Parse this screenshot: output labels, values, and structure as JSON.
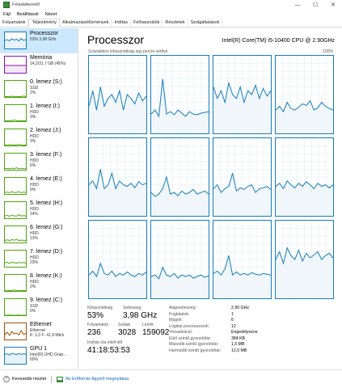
{
  "window": {
    "title": "Feladatkezelő",
    "minimize": "—",
    "maximize": "☐",
    "close": "✕"
  },
  "menu": [
    "Fájl",
    "Beállítások",
    "Nézet"
  ],
  "tabs": [
    "Folyamatok",
    "Teljesítmény",
    "Alkalmazáselőzmények",
    "Indítás",
    "Felhasználók",
    "Részletek",
    "Szolgáltatások"
  ],
  "active_tab": 1,
  "sidebar": {
    "items": [
      {
        "name": "Processzor",
        "sub1": "53%  3,98 GHz",
        "sub2": "",
        "color": "#117dbb",
        "fill": "#e8f2fa",
        "series": [
          50,
          55,
          48,
          60,
          52,
          58,
          47,
          62,
          50,
          56
        ]
      },
      {
        "name": "Memória",
        "sub1": "14,2/31,7 GB (45%)",
        "sub2": "",
        "color": "#8b12ae",
        "fill": "#f3e8f7",
        "series": [
          45,
          45,
          45,
          45,
          45,
          45,
          45,
          45,
          45,
          45
        ]
      },
      {
        "name": "0. lemez (S:)",
        "sub1": "SSD",
        "sub2": "2%",
        "color": "#4da60c",
        "fill": "#ffffff",
        "series": [
          2,
          3,
          2,
          5,
          2,
          2,
          3,
          2,
          6,
          2
        ]
      },
      {
        "name": "1. lemez (I:)",
        "sub1": "HDD",
        "sub2": "3%",
        "color": "#4da60c",
        "fill": "#ffffff",
        "series": [
          3,
          4,
          3,
          3,
          8,
          3,
          3,
          4,
          3,
          3
        ]
      },
      {
        "name": "2. lemez (J:)",
        "sub1": "HDD",
        "sub2": "3%",
        "color": "#4da60c",
        "fill": "#ffffff",
        "series": [
          3,
          3,
          5,
          3,
          3,
          3,
          7,
          3,
          3,
          3
        ]
      },
      {
        "name": "3. lemez (F:)",
        "sub1": "HDD",
        "sub2": "6%",
        "color": "#4da60c",
        "fill": "#ffffff",
        "series": [
          6,
          8,
          5,
          10,
          6,
          12,
          5,
          9,
          7,
          6
        ]
      },
      {
        "name": "4. lemez (E:)",
        "sub1": "HDD",
        "sub2": "9%",
        "color": "#4da60c",
        "fill": "#ffffff",
        "series": [
          9,
          12,
          8,
          15,
          9,
          10,
          14,
          8,
          11,
          9
        ]
      },
      {
        "name": "5. lemez (H:)",
        "sub1": "HDD",
        "sub2": "14%",
        "color": "#4da60c",
        "fill": "#ffffff",
        "series": [
          14,
          18,
          12,
          20,
          15,
          13,
          22,
          14,
          16,
          14
        ]
      },
      {
        "name": "6. lemez (G:)",
        "sub1": "HDD",
        "sub2": "13%",
        "color": "#4da60c",
        "fill": "#ffffff",
        "series": [
          13,
          16,
          12,
          18,
          14,
          20,
          12,
          15,
          13,
          13
        ]
      },
      {
        "name": "7. lemez (D:)",
        "sub1": "HDD",
        "sub2": "23%",
        "color": "#4da60c",
        "fill": "#ffffff",
        "series": [
          23,
          28,
          20,
          30,
          25,
          22,
          27,
          24,
          26,
          23
        ]
      },
      {
        "name": "8. lemez (K:)",
        "sub1": "HDD",
        "sub2": "2%",
        "color": "#4da60c",
        "fill": "#ffffff",
        "series": [
          2,
          2,
          3,
          2,
          6,
          2,
          2,
          2,
          3,
          2
        ]
      },
      {
        "name": "9. lemez (C:)",
        "sub1": "SSD",
        "sub2": "0%",
        "color": "#4da60c",
        "fill": "#ffffff",
        "series": [
          0,
          0,
          1,
          0,
          0,
          0,
          1,
          0,
          0,
          0
        ]
      },
      {
        "name": "Ethernet",
        "sub1": "Ethernet",
        "sub2": "K: 1,0  F: 41,9 Mb/s",
        "color": "#a74f01",
        "fill": "#ffffff",
        "series": [
          30,
          45,
          25,
          50,
          35,
          40,
          28,
          55,
          32,
          38
        ]
      },
      {
        "name": "GPU 1",
        "sub1": "Intel(R) UHD Grap...",
        "sub2": "60%",
        "color": "#117dbb",
        "fill": "#e8f2fa",
        "series": [
          58,
          62,
          55,
          65,
          60,
          57,
          63,
          59,
          61,
          60
        ]
      }
    ]
  },
  "main": {
    "title": "Processzor",
    "cpu_name": "Intel(R) Core(TM) i5-10400 CPU @ 2.90GHz",
    "graph_label": "Százalékos kihasználtság egy percre vetítve",
    "graph_max": "100%",
    "cores": [
      [
        35,
        55,
        30,
        60,
        35,
        45,
        50,
        40,
        55,
        30,
        50,
        45,
        38,
        52,
        42,
        48
      ],
      [
        25,
        30,
        22,
        70,
        25,
        28,
        24,
        30,
        26,
        22,
        28,
        25,
        24,
        26,
        27,
        28
      ],
      [
        60,
        45,
        55,
        40,
        65,
        50,
        45,
        60,
        40,
        55,
        50,
        62,
        45,
        58,
        48,
        55
      ],
      [
        30,
        35,
        28,
        40,
        32,
        30,
        34,
        38,
        36,
        42,
        30,
        33,
        40,
        35,
        32,
        30
      ],
      [
        40,
        45,
        35,
        60,
        35,
        40,
        55,
        35,
        45,
        40,
        38,
        42,
        36,
        44,
        40,
        42
      ],
      [
        30,
        25,
        28,
        35,
        50,
        28,
        30,
        26,
        32,
        28,
        30,
        34,
        28,
        30,
        32,
        28
      ],
      [
        35,
        40,
        30,
        35,
        38,
        55,
        32,
        36,
        34,
        38,
        40,
        30,
        35,
        36,
        38,
        34
      ],
      [
        38,
        42,
        35,
        45,
        40,
        36,
        42,
        38,
        44,
        40,
        35,
        42,
        38,
        40,
        36,
        40
      ],
      [
        30,
        35,
        28,
        45,
        32,
        30,
        35,
        28,
        32,
        30,
        34,
        30,
        28,
        32,
        30,
        34
      ],
      [
        28,
        30,
        25,
        40,
        30,
        28,
        32,
        26,
        30,
        28,
        30,
        26,
        28,
        30,
        27,
        29
      ],
      [
        32,
        35,
        30,
        38,
        55,
        30,
        34,
        30,
        32,
        30,
        33,
        31,
        30,
        32,
        31,
        30
      ],
      [
        50,
        60,
        45,
        65,
        55,
        50,
        62,
        48,
        58,
        52,
        56,
        60,
        50,
        55,
        58,
        52
      ]
    ],
    "stats": {
      "util_label": "Kihasználtság",
      "util_value": "53%",
      "speed_label": "Sebesség",
      "speed_value": "3,98 GHz",
      "proc_label": "Folyamatok",
      "proc_value": "236",
      "threads_label": "Szálak",
      "threads_value": "3028",
      "handles_label": "Leírók",
      "handles_value": "159092",
      "uptime_label": "Indítás óta eltelt idő",
      "uptime_value": "41:18:53:53"
    },
    "specs": [
      {
        "label": "Alapsebesség:",
        "value": "2,90 GHz"
      },
      {
        "label": "Foglalatok:",
        "value": "1"
      },
      {
        "label": "Magok:",
        "value": "6"
      },
      {
        "label": "Logikai processzorok:",
        "value": "12"
      },
      {
        "label": "Virtualizáció:",
        "value": "Engedélyezve"
      },
      {
        "label": "Első szintű gyorsítótár:",
        "value": "384 KB"
      },
      {
        "label": "Második szintű gyorsítótár:",
        "value": "1,5 MB"
      },
      {
        "label": "Harmadik szintű gyorsítótár:",
        "value": "12,0 MB"
      }
    ]
  },
  "footer": {
    "less_details": "Kevesebb részlet",
    "resmon_link": "Az Erőforrás-figyelő megnyitása"
  }
}
